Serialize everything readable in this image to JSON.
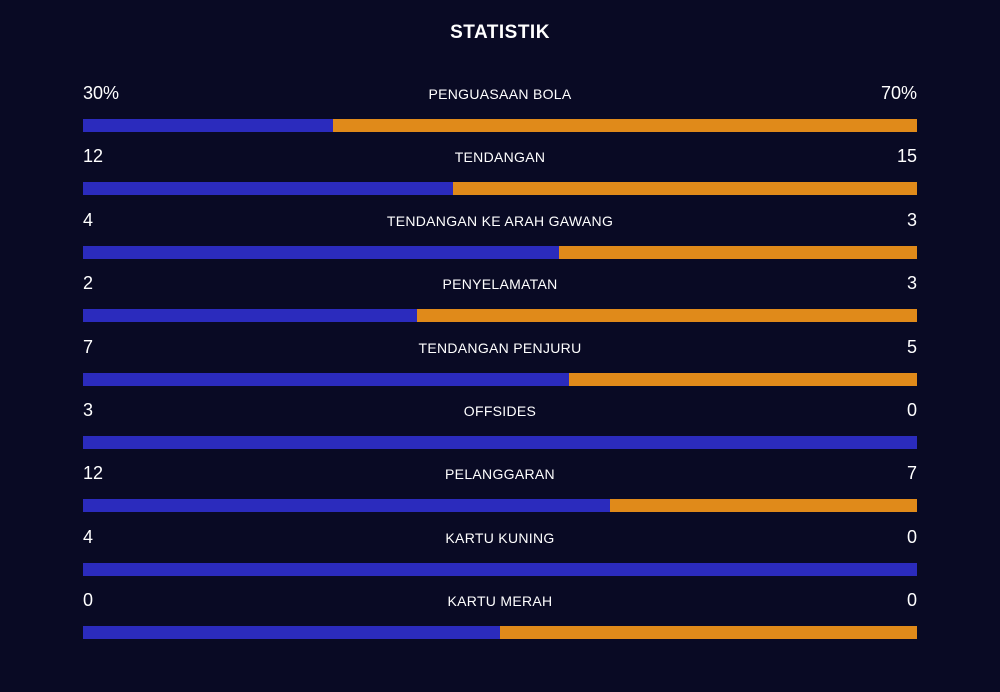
{
  "title": "STATISTIK",
  "colors": {
    "background": "#090a24",
    "home_bar": "#2b2bbd",
    "away_bar": "#e08a1a"
  },
  "stats": [
    {
      "label": "PENGUASAAN BOLA",
      "home": "30%",
      "away": "70%",
      "home_share": 0.3
    },
    {
      "label": "TENDANGAN",
      "home": "12",
      "away": "15",
      "home_share": 0.444
    },
    {
      "label": "TENDANGAN KE ARAH GAWANG",
      "home": "4",
      "away": "3",
      "home_share": 0.571
    },
    {
      "label": "PENYELAMATAN",
      "home": "2",
      "away": "3",
      "home_share": 0.4
    },
    {
      "label": "TENDANGAN PENJURU",
      "home": "7",
      "away": "5",
      "home_share": 0.583
    },
    {
      "label": "OFFSIDES",
      "home": "3",
      "away": "0",
      "home_share": 1.0
    },
    {
      "label": "PELANGGARAN",
      "home": "12",
      "away": "7",
      "home_share": 0.632
    },
    {
      "label": "KARTU KUNING",
      "home": "4",
      "away": "0",
      "home_share": 1.0
    },
    {
      "label": "KARTU MERAH",
      "home": "0",
      "away": "0",
      "home_share": 0.5
    }
  ]
}
